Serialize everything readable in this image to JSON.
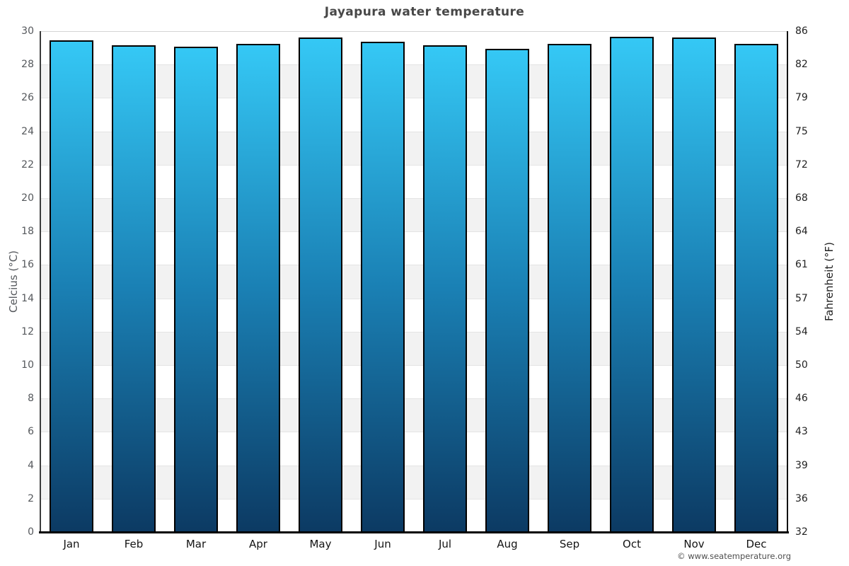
{
  "chart_data": {
    "type": "bar",
    "title": "Jayapura water temperature",
    "categories": [
      "Jan",
      "Feb",
      "Mar",
      "Apr",
      "May",
      "Jun",
      "Jul",
      "Aug",
      "Sep",
      "Oct",
      "Nov",
      "Dec"
    ],
    "values": [
      29.45,
      29.15,
      29.05,
      29.25,
      29.6,
      29.35,
      29.15,
      28.95,
      29.25,
      29.65,
      29.6,
      29.25
    ],
    "value_unit": "°C",
    "ylabel_left": "Celcius (°C)",
    "ylabel_right": "Fahrenheit (°F)",
    "ylim": [
      0,
      30
    ],
    "yticks_celsius": [
      30,
      28,
      26,
      24,
      22,
      20,
      18,
      16,
      14,
      12,
      10,
      8,
      6,
      4,
      2,
      0
    ],
    "yticks_fahrenheit": [
      86,
      82,
      79,
      75,
      72,
      68,
      64,
      61,
      57,
      54,
      50,
      46,
      43,
      39,
      36,
      32
    ],
    "legend": "none",
    "grid": "alternating-horizontal-bands",
    "colors": {
      "bar_top": "#35c8f5",
      "bar_mid": "#1a80b4",
      "bar_bottom": "#0c3a63",
      "bar_border": "#000000",
      "band_base": "#ffffff",
      "band_shade": "#f2f2f2",
      "grid_line": "#e4e4e4",
      "plot_top_line": "#d4d4d4",
      "title_text": "#474747",
      "tick_left_text": "#55585c",
      "tick_right_text": "#222222"
    }
  },
  "footer": {
    "credit": "© www.seatemperature.org"
  }
}
